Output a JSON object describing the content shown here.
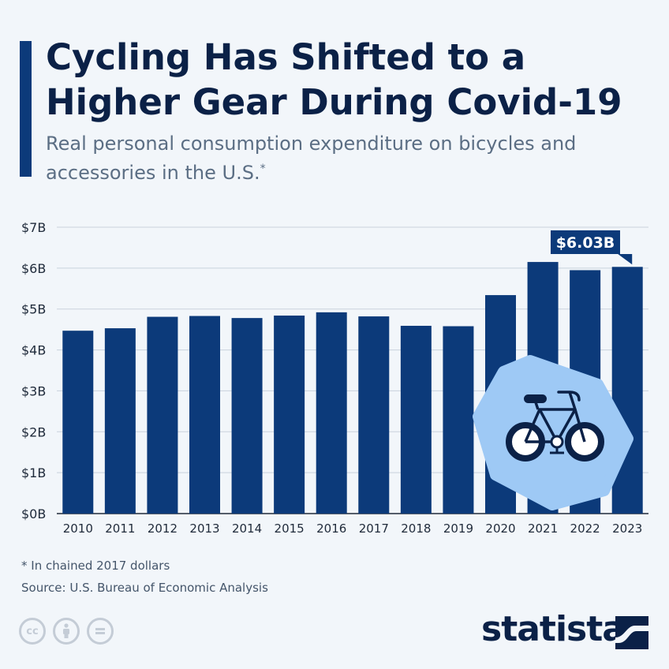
{
  "title": "Cycling Has Shifted to a Higher Gear During Covid-19",
  "subtitle": "Real personal consumption expenditure on bicycles and accessories in the U.S.",
  "subtitle_mark": "*",
  "footnote": "* In chained 2017 dollars",
  "source": "Source: U.S. Bureau of Economic Analysis",
  "brand": "statista",
  "icons": [
    "cc-icon",
    "person-icon",
    "equals-icon",
    "bicycle-icon",
    "statista-logo-icon"
  ],
  "colors": {
    "bar": "#0c3a7a",
    "title": "#0b2147",
    "accent": "#0c3a7a",
    "icon_bg": "#9ec9f5",
    "grid": "#c9d2dc"
  },
  "chart_data": {
    "type": "bar",
    "categories": [
      "2010",
      "2011",
      "2012",
      "2013",
      "2014",
      "2015",
      "2016",
      "2017",
      "2018",
      "2019",
      "2020",
      "2021",
      "2022",
      "2023"
    ],
    "values": [
      4.47,
      4.53,
      4.81,
      4.83,
      4.78,
      4.84,
      4.92,
      4.82,
      4.59,
      4.58,
      5.34,
      6.15,
      5.95,
      6.03
    ],
    "yticks": [
      "$0B",
      "$1B",
      "$2B",
      "$3B",
      "$4B",
      "$5B",
      "$6B",
      "$7B"
    ],
    "ylim": [
      0,
      7
    ],
    "grid": true,
    "annotation": {
      "category": "2023",
      "label": "$6.03B"
    }
  }
}
